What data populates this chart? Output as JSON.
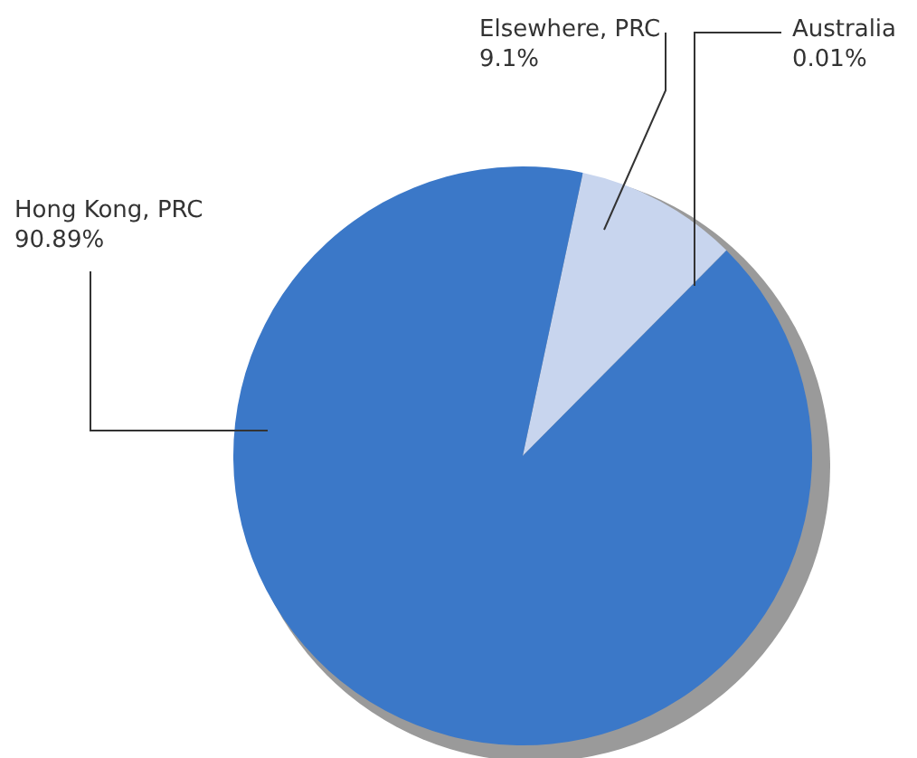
{
  "chart_data": {
    "type": "pie",
    "categories": [
      "Elsewhere, PRC",
      "Australia",
      "Hong Kong, PRC"
    ],
    "values": [
      9.1,
      0.01,
      90.89
    ],
    "colors": [
      "#c8d5ee",
      "#3b78c8",
      "#3b78c8"
    ],
    "value_labels": [
      "9.1%",
      "0.01%",
      "90.89%"
    ]
  }
}
